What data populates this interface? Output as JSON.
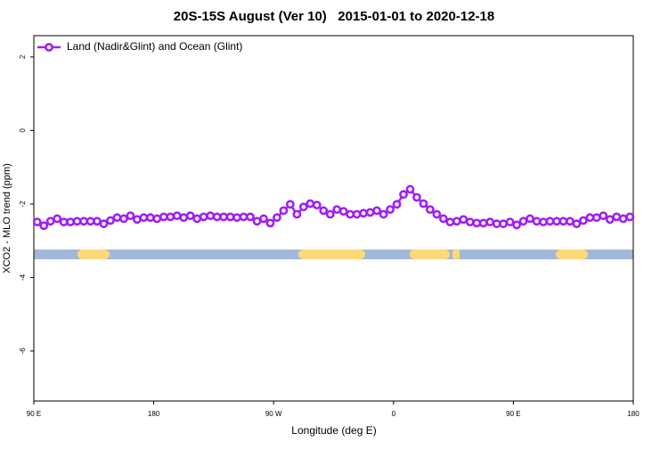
{
  "chart_data": {
    "type": "line",
    "title": "20S-15S August (Ver 10)   2015-01-01 to 2020-12-18",
    "xlabel": "Longitude (deg E)",
    "ylabel": "XCO2 - MLO trend (ppm)",
    "xlim": [
      90,
      540
    ],
    "xticks": [
      {
        "value": 90,
        "label": "90 E"
      },
      {
        "value": 180,
        "label": "180"
      },
      {
        "value": 270,
        "label": "90 W"
      },
      {
        "value": 360,
        "label": "0"
      },
      {
        "value": 450,
        "label": "90 E"
      },
      {
        "value": 540,
        "label": "180"
      }
    ],
    "ylim": [
      -7.36,
      2.58
    ],
    "yticks": [
      2,
      0,
      -2,
      -4,
      -6
    ],
    "legend": "top-left",
    "series": [
      {
        "name": "Land (Nadir&Glint) and Ocean (Glint)",
        "color": "#a020f0",
        "x": [
          92.5,
          97.5,
          102.5,
          107.5,
          112.5,
          117.5,
          122.5,
          127.5,
          132.5,
          137.5,
          142.5,
          147.5,
          152.5,
          157.5,
          162.5,
          167.5,
          172.5,
          177.5,
          182.5,
          187.5,
          192.5,
          197.5,
          202.5,
          207.5,
          212.5,
          217.5,
          222.5,
          227.5,
          232.5,
          237.5,
          242.5,
          247.5,
          252.5,
          257.5,
          262.5,
          267.5,
          272.5,
          277.5,
          282.5,
          287.5,
          292.5,
          297.5,
          302.5,
          307.5,
          312.5,
          317.5,
          322.5,
          327.5,
          332.5,
          337.5,
          342.5,
          347.5,
          352.5,
          357.5,
          362.5,
          367.5,
          372.5,
          377.5,
          382.5,
          387.5,
          392.5,
          397.5,
          402.5,
          407.5,
          412.5,
          417.5,
          422.5,
          427.5,
          432.5,
          437.5,
          442.5,
          447.5,
          452.5,
          457.5,
          462.5,
          467.5,
          472.5,
          477.5,
          482.5,
          487.5,
          492.5,
          497.5,
          502.5,
          507.5,
          512.5,
          517.5,
          522.5,
          527.5,
          532.5,
          537.5
        ],
        "values": [
          -2.49,
          -2.59,
          -2.47,
          -2.4,
          -2.49,
          -2.49,
          -2.47,
          -2.47,
          -2.47,
          -2.47,
          -2.54,
          -2.45,
          -2.37,
          -2.4,
          -2.32,
          -2.42,
          -2.37,
          -2.37,
          -2.4,
          -2.35,
          -2.35,
          -2.32,
          -2.37,
          -2.32,
          -2.4,
          -2.35,
          -2.32,
          -2.35,
          -2.35,
          -2.35,
          -2.37,
          -2.35,
          -2.35,
          -2.47,
          -2.4,
          -2.52,
          -2.37,
          -2.18,
          -2.01,
          -2.28,
          -2.08,
          -1.99,
          -2.03,
          -2.18,
          -2.28,
          -2.15,
          -2.2,
          -2.28,
          -2.28,
          -2.25,
          -2.23,
          -2.18,
          -2.28,
          -2.15,
          -2.01,
          -1.74,
          -1.6,
          -1.82,
          -1.99,
          -2.15,
          -2.28,
          -2.4,
          -2.49,
          -2.47,
          -2.42,
          -2.49,
          -2.52,
          -2.52,
          -2.49,
          -2.54,
          -2.54,
          -2.49,
          -2.57,
          -2.47,
          -2.4,
          -2.47,
          -2.49,
          -2.47,
          -2.47,
          -2.47,
          -2.47,
          -2.54,
          -2.45,
          -2.37,
          -2.37,
          -2.32,
          -2.42,
          -2.35,
          -2.4,
          -2.35
        ]
      }
    ]
  }
}
